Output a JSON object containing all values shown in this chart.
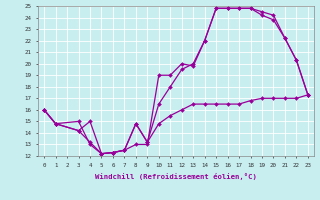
{
  "xlabel": "Windchill (Refroidissement éolien,°C)",
  "bg_color": "#c8eef0",
  "line_color": "#990099",
  "xlim": [
    -0.5,
    23.5
  ],
  "ylim": [
    12,
    25
  ],
  "xticks": [
    0,
    1,
    2,
    3,
    4,
    5,
    6,
    7,
    8,
    9,
    10,
    11,
    12,
    13,
    14,
    15,
    16,
    17,
    18,
    19,
    20,
    21,
    22,
    23
  ],
  "yticks": [
    12,
    13,
    14,
    15,
    16,
    17,
    18,
    19,
    20,
    21,
    22,
    23,
    24,
    25
  ],
  "s1_x": [
    0,
    1,
    3,
    4,
    5,
    6,
    7,
    8,
    9,
    10,
    11,
    12,
    13,
    14,
    15,
    16,
    17,
    18,
    19,
    20,
    21,
    22,
    23
  ],
  "s1_y": [
    16,
    14.8,
    15.0,
    13.0,
    12.2,
    12.3,
    12.5,
    13.0,
    13.0,
    19.0,
    19.0,
    20.0,
    19.8,
    22.0,
    24.8,
    24.8,
    24.8,
    24.8,
    24.2,
    23.8,
    22.2,
    20.3,
    17.3
  ],
  "s2_x": [
    0,
    1,
    3,
    4,
    5,
    6,
    7,
    8,
    9,
    10,
    11,
    12,
    13,
    14,
    15,
    16,
    17,
    18,
    19,
    20,
    21,
    22,
    23
  ],
  "s2_y": [
    16,
    14.8,
    14.2,
    13.2,
    12.2,
    12.3,
    12.5,
    14.8,
    13.2,
    16.5,
    18.0,
    19.5,
    20.0,
    22.0,
    24.8,
    24.8,
    24.8,
    24.8,
    24.5,
    24.2,
    22.2,
    20.3,
    17.3
  ],
  "s3_x": [
    0,
    1,
    3,
    4,
    5,
    6,
    7,
    8,
    9,
    10,
    11,
    12,
    13,
    14,
    15,
    16,
    17,
    18,
    19,
    20,
    21,
    22,
    23
  ],
  "s3_y": [
    16,
    14.8,
    14.2,
    15.0,
    12.2,
    12.3,
    12.5,
    14.8,
    13.2,
    14.8,
    15.5,
    16.0,
    16.5,
    16.5,
    16.5,
    16.5,
    16.5,
    16.8,
    17.0,
    17.0,
    17.0,
    17.0,
    17.3
  ]
}
